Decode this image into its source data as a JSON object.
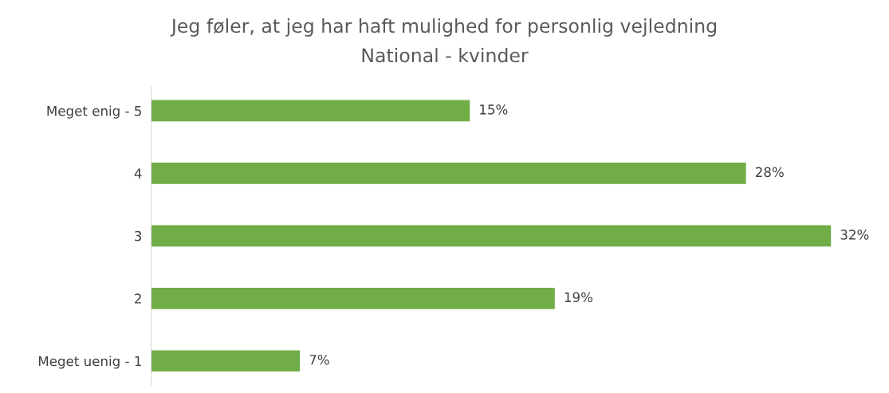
{
  "chart_data": {
    "type": "bar",
    "orientation": "horizontal",
    "title": "Jeg føler, at jeg har haft mulighed for personlig vejledning",
    "subtitle": "National - kvinder",
    "categories": [
      "Meget enig - 5",
      "4",
      "3",
      "2",
      "Meget uenig - 1"
    ],
    "values": [
      15,
      28,
      32,
      19,
      7
    ],
    "value_labels": [
      "15%",
      "28%",
      "32%",
      "19%",
      "7%"
    ],
    "color": "#70ad47",
    "grid": false,
    "legend": false
  }
}
